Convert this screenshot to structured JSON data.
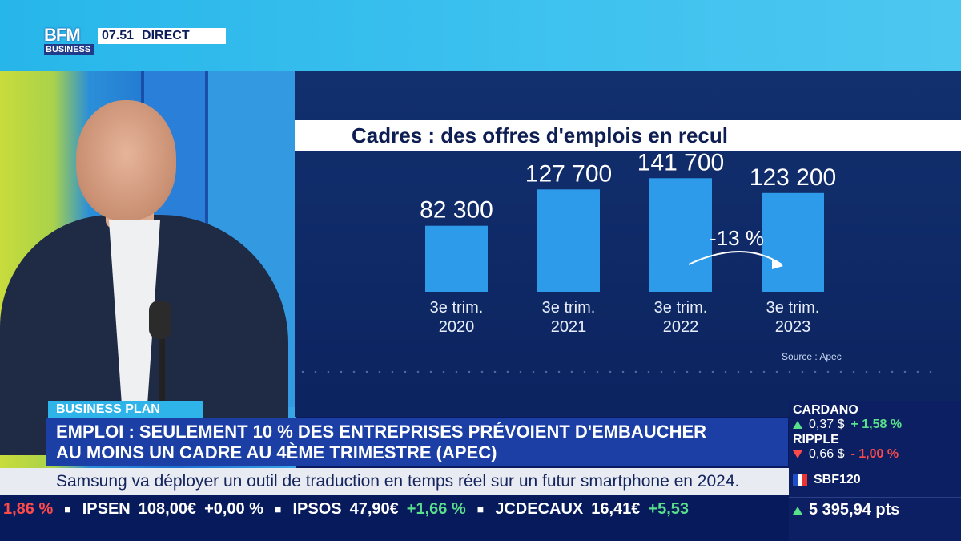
{
  "header": {
    "logo_main": "BFM",
    "logo_sub": "BUSINESS",
    "time": "07.51",
    "live_label": "DIRECT"
  },
  "chart_data": {
    "type": "bar",
    "title": "Cadres : des offres d'emplois en recul",
    "categories": [
      [
        "3e trim.",
        "2020"
      ],
      [
        "3e trim.",
        "2021"
      ],
      [
        "3e trim.",
        "2022"
      ],
      [
        "3e trim.",
        "2023"
      ]
    ],
    "values": [
      82300,
      127700,
      141700,
      123200
    ],
    "value_labels": [
      "82 300",
      "127 700",
      "141 700",
      "123 200"
    ],
    "annotation": "-13 %",
    "source": "Source : Apec",
    "ylim": [
      0,
      160000
    ],
    "colors": {
      "bar": "#2d9bea",
      "label": "#ffffff"
    }
  },
  "lower_third": {
    "tag": "BUSINESS PLAN",
    "headline_line1": "EMPLOI : SEULEMENT 10 % DES ENTREPRISES PRÉVOIENT D'EMBAUCHER",
    "headline_line2": "AU MOINS UN CADRE AU 4ÈME TRIMESTRE (APEC)",
    "news_ticker": "Samsung va déployer un outil de traduction en temps réel sur un futur smartphone en 2024."
  },
  "stock_ticker": [
    {
      "name": "",
      "value": "",
      "change": "1,86 %",
      "dir": "down"
    },
    {
      "name": "IPSEN",
      "value": "108,00€",
      "change": "+0,00 %",
      "dir": "flat"
    },
    {
      "name": "IPSOS",
      "value": "47,90€",
      "change": "+1,66 %",
      "dir": "up"
    },
    {
      "name": "JCDECAUX",
      "value": "16,41€",
      "change": "+5,53",
      "dir": "up"
    }
  ],
  "markets": {
    "crypto1": {
      "name": "CARDANO",
      "price": "0,37 $",
      "change": "+ 1,58 %"
    },
    "crypto2": {
      "name": "RIPPLE",
      "price": "0,66 $",
      "change": "- 1,00 %"
    },
    "index": {
      "name": "SBF120",
      "value": "5 395,94 pts"
    }
  }
}
